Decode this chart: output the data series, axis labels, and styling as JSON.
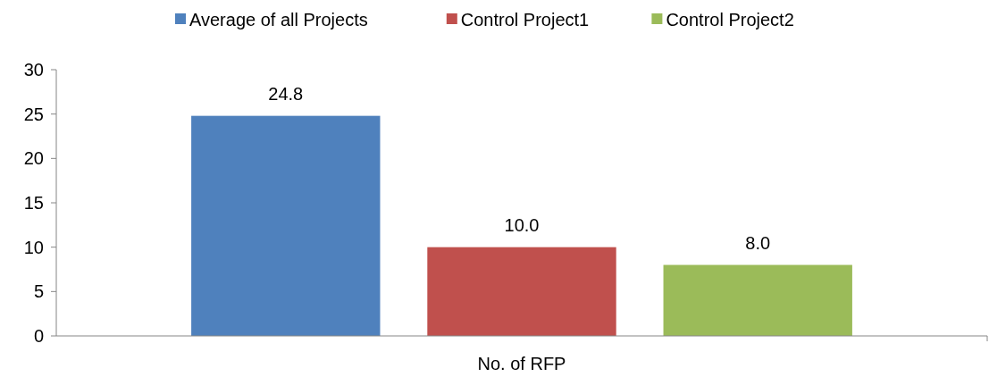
{
  "chart_data": {
    "type": "bar",
    "categories": [
      "No. of RFP"
    ],
    "series": [
      {
        "name": "Average of all Projects",
        "color": "#4f81bd",
        "values": [
          24.8
        ],
        "value_labels": [
          "24.8"
        ]
      },
      {
        "name": "Control Project1",
        "color": "#c0504d",
        "values": [
          10.0
        ],
        "value_labels": [
          "10.0"
        ]
      },
      {
        "name": "Control Project2",
        "color": "#9bbb59",
        "values": [
          8.0
        ],
        "value_labels": [
          "8.0"
        ]
      }
    ],
    "ylim": [
      0,
      30
    ],
    "yticks": [
      0,
      5,
      10,
      15,
      20,
      25,
      30
    ],
    "grid": false,
    "legend": "top"
  }
}
